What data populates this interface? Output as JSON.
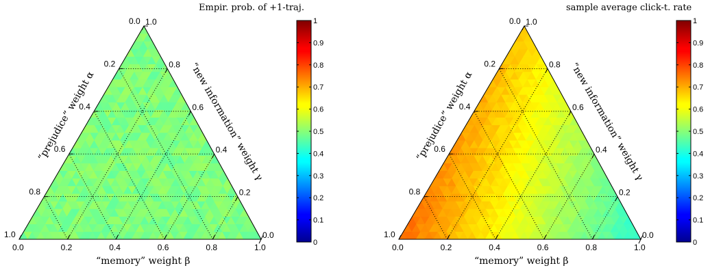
{
  "chart_data": [
    {
      "type": "heatmap",
      "subtype": "ternary",
      "title": "Empir. prob. of +1-traj.",
      "bottom_axis_label": "“memory” weight β",
      "left_axis_label": "“prejudice” weight α",
      "right_axis_label": "“new information” weight γ",
      "ticks": [
        "0.0",
        "0.2",
        "0.4",
        "0.6",
        "0.8",
        "1.0"
      ],
      "colorbar_ticks": [
        "0",
        "0.1",
        "0.2",
        "0.3",
        "0.4",
        "0.5",
        "0.6",
        "0.7",
        "0.8",
        "0.9",
        "1"
      ],
      "colorbar_range": [
        0,
        1
      ],
      "colormap": "jet",
      "grid": true,
      "field": {
        "description_value": "uniform",
        "base": 0.5,
        "alpha_coef": 0,
        "gamma_coef": 0,
        "noise": 0.03
      }
    },
    {
      "type": "heatmap",
      "subtype": "ternary",
      "title": "sample average click-t. rate",
      "bottom_axis_label": "“memory” weight β",
      "left_axis_label": "“prejudice” weight α",
      "right_axis_label": "“new information” weight γ",
      "ticks": [
        "0.0",
        "0.2",
        "0.4",
        "0.6",
        "0.8",
        "1.0"
      ],
      "colorbar_ticks": [
        "0",
        "0.1",
        "0.2",
        "0.3",
        "0.4",
        "0.5",
        "0.6",
        "0.7",
        "0.8",
        "0.9",
        "1"
      ],
      "colorbar_range": [
        0,
        1
      ],
      "colormap": "jet",
      "grid": true,
      "field": {
        "base": 0.62,
        "alpha_coef": 0.36,
        "gamma_coef": 0.26,
        "noise": 0.015
      }
    }
  ]
}
